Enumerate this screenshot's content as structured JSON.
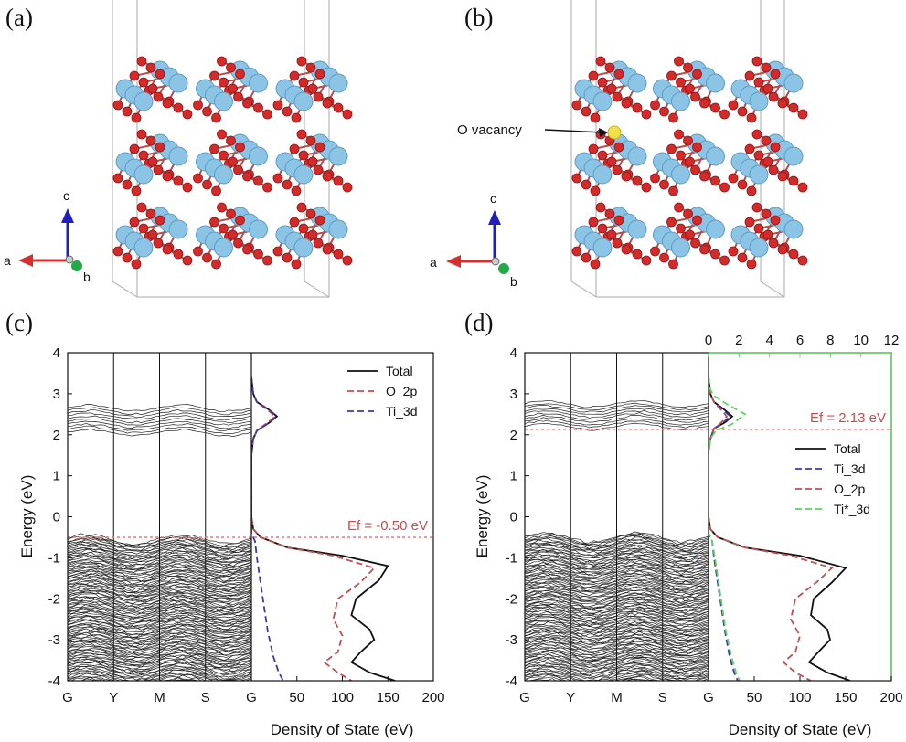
{
  "panels": {
    "a": {
      "label": "(a)"
    },
    "b": {
      "label": "(b)",
      "vacancy_label": "O vacancy"
    },
    "c": {
      "label": "(c)"
    },
    "d": {
      "label": "(d)"
    }
  },
  "axes_triad": {
    "a": "a",
    "b": "b",
    "c": "c"
  },
  "colors": {
    "total": "#111111",
    "o2p": "#c0504d",
    "ti3d": "#3b3ba8",
    "tistar3d": "#5fd35f",
    "ef_line": "#e07b7b",
    "ti_atom": "#8cc4e6",
    "o_atom": "#d42a2a",
    "vacancy": "#f2e04a"
  },
  "chart_data": [
    {
      "panel": "c",
      "type": "line",
      "ylabel": "Energy (eV)",
      "xlabel": "Density of State (eV)",
      "ylim": [
        -4,
        4
      ],
      "yticks": [
        "4",
        "3",
        "2",
        "1",
        "0",
        "-1",
        "-2",
        "-3",
        "-4"
      ],
      "band_kpoints": [
        "G",
        "Y",
        "M",
        "S",
        "G"
      ],
      "dos_xlim": [
        0,
        200
      ],
      "dos_xticks": [
        "50",
        "100",
        "150",
        "200"
      ],
      "fermi_label": "Ef = -0.50 eV",
      "fermi_level": -0.5,
      "legend": [
        "Total",
        "O_2p",
        "Ti_3d"
      ],
      "series": [
        {
          "name": "Total",
          "key": "total",
          "style": "solid",
          "color": "#111111",
          "points": [
            [
              0,
              3.4
            ],
            [
              2,
              3.0
            ],
            [
              6,
              2.8
            ],
            [
              20,
              2.6
            ],
            [
              28,
              2.45
            ],
            [
              20,
              2.3
            ],
            [
              6,
              2.1
            ],
            [
              2,
              1.9
            ],
            [
              0,
              1.5
            ],
            [
              0,
              0
            ],
            [
              2,
              -0.3
            ],
            [
              10,
              -0.5
            ],
            [
              40,
              -0.75
            ],
            [
              100,
              -0.95
            ],
            [
              150,
              -1.2
            ],
            [
              140,
              -1.55
            ],
            [
              115,
              -2.0
            ],
            [
              110,
              -2.4
            ],
            [
              130,
              -2.75
            ],
            [
              135,
              -3.0
            ],
            [
              120,
              -3.3
            ],
            [
              110,
              -3.55
            ],
            [
              130,
              -3.8
            ],
            [
              158,
              -4.0
            ]
          ]
        },
        {
          "name": "O_2p",
          "key": "o2p",
          "style": "dashed",
          "color": "#c0504d",
          "points": [
            [
              0,
              3.4
            ],
            [
              2,
              3.0
            ],
            [
              6,
              2.8
            ],
            [
              18,
              2.6
            ],
            [
              26,
              2.45
            ],
            [
              18,
              2.3
            ],
            [
              6,
              2.1
            ],
            [
              2,
              1.9
            ],
            [
              0,
              1.5
            ],
            [
              0,
              0
            ],
            [
              2,
              -0.3
            ],
            [
              10,
              -0.5
            ],
            [
              40,
              -0.75
            ],
            [
              90,
              -0.95
            ],
            [
              135,
              -1.25
            ],
            [
              120,
              -1.6
            ],
            [
              95,
              -2.0
            ],
            [
              90,
              -2.5
            ],
            [
              100,
              -2.9
            ],
            [
              95,
              -3.3
            ],
            [
              80,
              -3.55
            ],
            [
              95,
              -3.8
            ],
            [
              110,
              -4.0
            ]
          ]
        },
        {
          "name": "Ti_3d",
          "key": "ti3d",
          "style": "dashed",
          "color": "#3b3ba8",
          "points": [
            [
              0,
              3.4
            ],
            [
              2,
              3.0
            ],
            [
              6,
              2.8
            ],
            [
              20,
              2.6
            ],
            [
              27,
              2.45
            ],
            [
              20,
              2.3
            ],
            [
              6,
              2.1
            ],
            [
              2,
              1.9
            ],
            [
              0,
              1.5
            ],
            [
              0,
              -0.4
            ],
            [
              4,
              -0.6
            ],
            [
              6,
              -1.0
            ],
            [
              10,
              -1.6
            ],
            [
              14,
              -2.2
            ],
            [
              18,
              -2.8
            ],
            [
              24,
              -3.4
            ],
            [
              30,
              -3.8
            ],
            [
              35,
              -4.0
            ]
          ]
        }
      ]
    },
    {
      "panel": "d",
      "type": "line",
      "ylabel": "Energy (eV)",
      "xlabel": "Density of State (eV)",
      "ylim": [
        -4,
        4
      ],
      "yticks": [
        "4",
        "3",
        "2",
        "1",
        "0",
        "-1",
        "-2",
        "-3",
        "-4"
      ],
      "band_kpoints": [
        "G",
        "Y",
        "M",
        "S",
        "G"
      ],
      "dos_xlim": [
        0,
        200
      ],
      "dos_xticks": [
        "50",
        "100",
        "150",
        "200"
      ],
      "top_xlim": [
        0,
        12
      ],
      "top_xticks": [
        "0",
        "2",
        "4",
        "6",
        "8",
        "10",
        "12"
      ],
      "fermi_label": "Ef = 2.13 eV",
      "fermi_level": 2.13,
      "legend": [
        "Total",
        "Ti_3d",
        "O_2p",
        "Ti*_3d"
      ],
      "series": [
        {
          "name": "Total",
          "key": "total",
          "style": "solid",
          "color": "#111111",
          "points": [
            [
              0,
              3.4
            ],
            [
              2,
              3.0
            ],
            [
              6,
              2.8
            ],
            [
              18,
              2.6
            ],
            [
              26,
              2.45
            ],
            [
              18,
              2.3
            ],
            [
              6,
              2.15
            ],
            [
              2,
              1.9
            ],
            [
              0,
              1.6
            ],
            [
              0,
              0
            ],
            [
              2,
              -0.3
            ],
            [
              10,
              -0.5
            ],
            [
              40,
              -0.75
            ],
            [
              100,
              -0.95
            ],
            [
              150,
              -1.25
            ],
            [
              135,
              -1.6
            ],
            [
              115,
              -2.0
            ],
            [
              112,
              -2.4
            ],
            [
              130,
              -2.75
            ],
            [
              133,
              -3.0
            ],
            [
              120,
              -3.3
            ],
            [
              110,
              -3.55
            ],
            [
              130,
              -3.8
            ],
            [
              155,
              -4.0
            ]
          ]
        },
        {
          "name": "Ti_3d",
          "key": "ti3d",
          "style": "dashed",
          "color": "#3b3ba8",
          "points": [
            [
              0,
              3.4
            ],
            [
              2,
              3.0
            ],
            [
              6,
              2.8
            ],
            [
              16,
              2.6
            ],
            [
              24,
              2.45
            ],
            [
              16,
              2.3
            ],
            [
              6,
              2.15
            ],
            [
              2,
              1.9
            ],
            [
              0,
              1.6
            ],
            [
              0,
              -0.4
            ],
            [
              4,
              -0.6
            ],
            [
              6,
              -1.0
            ],
            [
              10,
              -1.6
            ],
            [
              14,
              -2.2
            ],
            [
              18,
              -2.8
            ],
            [
              23,
              -3.4
            ],
            [
              28,
              -3.8
            ],
            [
              32,
              -4.0
            ]
          ]
        },
        {
          "name": "O_2p",
          "key": "o2p",
          "style": "dashed",
          "color": "#c0504d",
          "points": [
            [
              0,
              3.4
            ],
            [
              2,
              3.0
            ],
            [
              6,
              2.8
            ],
            [
              14,
              2.6
            ],
            [
              20,
              2.45
            ],
            [
              14,
              2.3
            ],
            [
              6,
              2.15
            ],
            [
              2,
              1.9
            ],
            [
              0,
              1.6
            ],
            [
              0,
              0
            ],
            [
              2,
              -0.3
            ],
            [
              10,
              -0.5
            ],
            [
              40,
              -0.75
            ],
            [
              90,
              -0.95
            ],
            [
              135,
              -1.25
            ],
            [
              118,
              -1.6
            ],
            [
              95,
              -2.0
            ],
            [
              90,
              -2.5
            ],
            [
              100,
              -2.9
            ],
            [
              95,
              -3.3
            ],
            [
              82,
              -3.55
            ],
            [
              95,
              -3.8
            ],
            [
              112,
              -4.0
            ]
          ]
        },
        {
          "name": "Ti*_3d",
          "key": "tistar3d",
          "style": "dashed",
          "color": "#5fd35f",
          "points": [
            [
              0,
              3.4
            ],
            [
              2,
              3.1
            ],
            [
              6,
              2.95
            ],
            [
              20,
              2.75
            ],
            [
              40,
              2.5
            ],
            [
              25,
              2.25
            ],
            [
              8,
              2.1
            ],
            [
              2,
              1.9
            ],
            [
              0,
              1.6
            ],
            [
              0,
              -0.4
            ],
            [
              4,
              -0.6
            ],
            [
              7,
              -1.0
            ],
            [
              11,
              -1.6
            ],
            [
              15,
              -2.2
            ],
            [
              19,
              -2.8
            ],
            [
              25,
              -3.4
            ],
            [
              30,
              -3.8
            ],
            [
              34,
              -4.0
            ]
          ]
        }
      ]
    }
  ]
}
